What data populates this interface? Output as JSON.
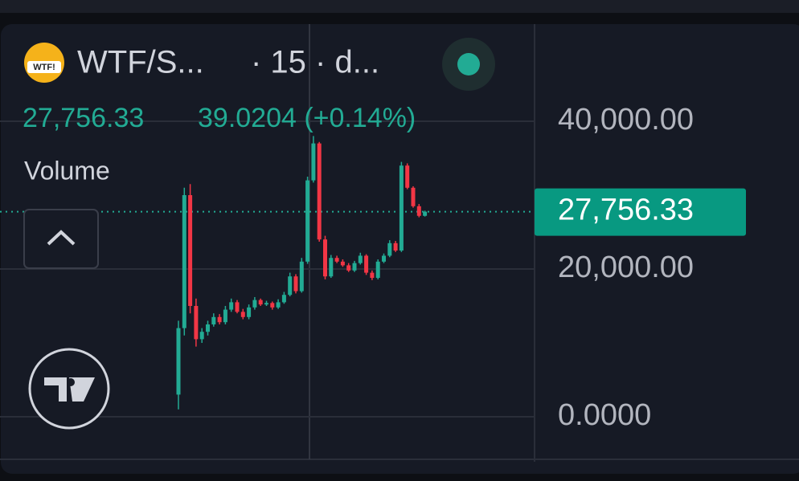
{
  "header": {
    "icon_text": "WTF!",
    "symbol": "WTF/S...",
    "interval": "· 15 · d...",
    "change_text": "39.0204 (+0.14%)"
  },
  "volume_label": "Volume",
  "chart_data": {
    "type": "candlestick",
    "open": [
      3000,
      12000,
      30000,
      15000,
      10500,
      11500,
      12500,
      13500,
      12800,
      14500,
      15500,
      14200,
      13500,
      14800,
      15800,
      15200,
      15400,
      14800,
      15500,
      16500,
      19000,
      17000,
      21000,
      32000,
      37000,
      24000,
      19000,
      21500,
      21000,
      20500,
      19800,
      20800,
      21800,
      19500,
      18800,
      21000,
      21800,
      23500,
      22500,
      34000,
      31000,
      28500,
      27200
    ],
    "close": [
      12000,
      30000,
      15000,
      10500,
      11500,
      12500,
      13500,
      12800,
      14500,
      15500,
      14200,
      13500,
      14800,
      15800,
      15200,
      15400,
      14800,
      15500,
      16500,
      19000,
      17000,
      21000,
      32000,
      37000,
      24000,
      19000,
      21500,
      21000,
      20500,
      19800,
      20800,
      21800,
      19500,
      18800,
      21000,
      21800,
      23500,
      22500,
      34000,
      31000,
      28500,
      27200,
      27756.33
    ],
    "high": [
      13000,
      31000,
      31500,
      16000,
      12000,
      13000,
      14000,
      13900,
      15000,
      16000,
      15800,
      14600,
      15200,
      16200,
      16000,
      15700,
      15600,
      15900,
      16900,
      19500,
      19300,
      21500,
      32500,
      38000,
      37200,
      24500,
      21900,
      21800,
      21300,
      20800,
      21100,
      22200,
      22000,
      19800,
      21300,
      22100,
      23900,
      23800,
      34500,
      34300,
      31200,
      28800,
      27900
    ],
    "low": [
      1000,
      11000,
      14000,
      9500,
      10000,
      11000,
      12200,
      12500,
      12500,
      14200,
      14000,
      13200,
      13200,
      14500,
      15000,
      15000,
      14500,
      14600,
      15300,
      16300,
      16700,
      16800,
      20700,
      31700,
      23700,
      18600,
      18800,
      20800,
      20300,
      19600,
      19600,
      20600,
      19200,
      18500,
      18600,
      20800,
      21600,
      22300,
      22300,
      30800,
      28300,
      27000,
      27100
    ],
    "up_color": "#22ab94",
    "down_color": "#f23645",
    "last_price": {
      "value": 27756.33,
      "label": "27,756.33"
    },
    "ylim": [
      -5543,
      54239
    ],
    "yticks": [
      {
        "value": 40000,
        "label": "40,000.00"
      },
      {
        "value": 20000,
        "label": "20,000.00"
      },
      {
        "value": 0,
        "label": "0.0000"
      }
    ],
    "grid": true
  }
}
